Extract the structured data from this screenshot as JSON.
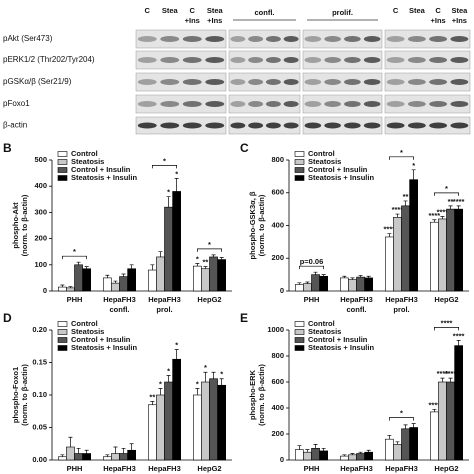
{
  "blot": {
    "lane_labels": [
      "C",
      "Stea",
      "C",
      "Stea"
    ],
    "insulin_labels": [
      "+Ins",
      "+Ins"
    ],
    "group_labels": [
      "confl.",
      "prolif."
    ],
    "rows": [
      "pAkt (Ser473)",
      "pERK1/2 (Thr202/Tyr204)",
      "pGSKα/β (Ser21/9)",
      "pFoxo1",
      "β-actin"
    ]
  },
  "chart_data": [
    {
      "type": "bar",
      "panel": "B",
      "y_label": [
        "phospho-Akt",
        "(norm. to β-actin)"
      ],
      "categories": [
        [
          "PHH"
        ],
        [
          "HepaFH3",
          "confl."
        ],
        [
          "HepaFH3",
          "prol."
        ],
        [
          "HepG2"
        ]
      ],
      "ylim": [
        0,
        500
      ],
      "yticks": [
        0,
        100,
        200,
        300,
        400,
        500
      ],
      "series": [
        {
          "name": "Control",
          "color": "#ffffff",
          "values": [
            15,
            50,
            80,
            95
          ],
          "errors": [
            8,
            10,
            20,
            10
          ],
          "stars": [
            null,
            null,
            null,
            "*"
          ]
        },
        {
          "name": "Steatosis",
          "color": "#c8c8c8",
          "values": [
            12,
            30,
            130,
            85
          ],
          "errors": [
            5,
            8,
            20,
            8
          ],
          "stars": [
            null,
            null,
            null,
            "**"
          ]
        },
        {
          "name": "Control + Insulin",
          "color": "#555555",
          "values": [
            100,
            55,
            320,
            130
          ],
          "errors": [
            10,
            10,
            40,
            8
          ],
          "stars": [
            null,
            null,
            "*",
            null
          ]
        },
        {
          "name": "Steatosis + Insulin",
          "color": "#000000",
          "values": [
            85,
            85,
            380,
            120
          ],
          "errors": [
            8,
            15,
            50,
            8
          ],
          "stars": [
            null,
            null,
            "*",
            null
          ]
        }
      ],
      "brackets": [
        {
          "category": 0,
          "label": "*"
        },
        {
          "category": 2,
          "label": "*"
        },
        {
          "category": 3,
          "label": "*"
        }
      ]
    },
    {
      "type": "bar",
      "panel": "C",
      "y_label": [
        "phospho-GSK3α, β",
        "(norm. to β-actin)"
      ],
      "categories": [
        [
          "PHH"
        ],
        [
          "HepaFH3",
          "confl."
        ],
        [
          "HepaFH3",
          "prol."
        ],
        [
          "HepG2"
        ]
      ],
      "ylim": [
        0,
        800
      ],
      "yticks": [
        0,
        200,
        400,
        600,
        800
      ],
      "series": [
        {
          "name": "Control",
          "color": "#ffffff",
          "values": [
            40,
            80,
            330,
            420
          ],
          "errors": [
            10,
            10,
            20,
            15
          ],
          "stars": [
            null,
            null,
            "****",
            "****"
          ]
        },
        {
          "name": "Steatosis",
          "color": "#c8c8c8",
          "values": [
            45,
            70,
            450,
            440
          ],
          "errors": [
            10,
            10,
            20,
            15
          ],
          "stars": [
            null,
            null,
            "****",
            "****"
          ]
        },
        {
          "name": "Control + Insulin",
          "color": "#555555",
          "values": [
            100,
            85,
            520,
            500
          ],
          "errors": [
            15,
            10,
            30,
            20
          ],
          "stars": [
            null,
            null,
            "**",
            "**"
          ]
        },
        {
          "name": "Steatosis + Insulin",
          "color": "#000000",
          "values": [
            90,
            80,
            680,
            500
          ],
          "errors": [
            10,
            10,
            60,
            20
          ],
          "stars": [
            null,
            null,
            "*",
            "****"
          ]
        }
      ],
      "brackets": [
        {
          "category": 0,
          "label": "p=0.06"
        },
        {
          "category": 2,
          "label": "*"
        },
        {
          "category": 3,
          "label": "*"
        }
      ]
    },
    {
      "type": "bar",
      "panel": "D",
      "y_label": [
        "phospho-Foxo1",
        "(norm. to β-actin)"
      ],
      "categories": [
        [
          "PHH"
        ],
        [
          "HepaFH3",
          "confl."
        ],
        [
          "HepaFH3",
          "prol."
        ],
        [
          "HepG2"
        ]
      ],
      "ylim": [
        0,
        0.2
      ],
      "yticks": [
        {
          "value": 0,
          "label": "0.00"
        },
        0.05,
        {
          "value": 0.1,
          "label": "0.10"
        },
        0.15,
        {
          "value": 0.2,
          "label": "0.20"
        }
      ],
      "series": [
        {
          "name": "Control",
          "color": "#ffffff",
          "values": [
            0.005,
            0.005,
            0.085,
            0.1
          ],
          "errors": [
            0.003,
            0.003,
            0.005,
            0.01
          ],
          "stars": [
            null,
            null,
            "**",
            "*"
          ]
        },
        {
          "name": "Steatosis",
          "color": "#c8c8c8",
          "values": [
            0.02,
            0.01,
            0.1,
            0.12
          ],
          "errors": [
            0.015,
            0.01,
            0.01,
            0.015
          ],
          "stars": [
            null,
            null,
            "*",
            "*"
          ]
        },
        {
          "name": "Control + Insulin",
          "color": "#555555",
          "values": [
            0.01,
            0.01,
            0.12,
            0.125
          ],
          "errors": [
            0.008,
            0.008,
            0.01,
            0.01
          ],
          "stars": [
            null,
            null,
            "*",
            null
          ]
        },
        {
          "name": "Steatosis + Insulin",
          "color": "#000000",
          "values": [
            0.01,
            0.015,
            0.155,
            0.115
          ],
          "errors": [
            0.005,
            0.01,
            0.015,
            0.01
          ],
          "stars": [
            null,
            null,
            "*",
            "*"
          ]
        }
      ],
      "brackets": []
    },
    {
      "type": "bar",
      "panel": "E",
      "y_label": [
        "phospho-ERK",
        "(norm. to β-actin)"
      ],
      "categories": [
        [
          "PHH"
        ],
        [
          "HepaFH3",
          "confl."
        ],
        [
          "HepaFH3",
          "prol."
        ],
        [
          "HepG2"
        ]
      ],
      "ylim": [
        0,
        1000
      ],
      "yticks": [
        0,
        200,
        400,
        600,
        800,
        1000
      ],
      "series": [
        {
          "name": "Control",
          "color": "#ffffff",
          "values": [
            80,
            30,
            160,
            370
          ],
          "errors": [
            30,
            10,
            30,
            20
          ],
          "stars": [
            null,
            null,
            null,
            "****"
          ]
        },
        {
          "name": "Steatosis",
          "color": "#c8c8c8",
          "values": [
            60,
            40,
            120,
            600
          ],
          "errors": [
            20,
            10,
            20,
            30
          ],
          "stars": [
            null,
            null,
            null,
            "****"
          ]
        },
        {
          "name": "Control + Insulin",
          "color": "#555555",
          "values": [
            90,
            50,
            240,
            600
          ],
          "errors": [
            30,
            10,
            30,
            30
          ],
          "stars": [
            null,
            null,
            null,
            "****"
          ]
        },
        {
          "name": "Steatosis + Insulin",
          "color": "#000000",
          "values": [
            70,
            60,
            250,
            880
          ],
          "errors": [
            20,
            15,
            30,
            40
          ],
          "stars": [
            null,
            null,
            null,
            "****"
          ]
        }
      ],
      "brackets": [
        {
          "category": 2,
          "label": "*"
        },
        {
          "category": 3,
          "label": "****"
        }
      ]
    }
  ]
}
